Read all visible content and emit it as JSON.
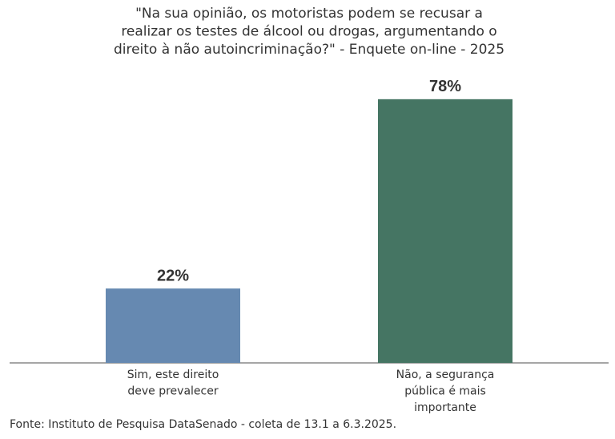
{
  "chart_data": {
    "type": "bar",
    "title": [
      "\"Na sua opinião, os motoristas podem se recusar a",
      "realizar os testes de álcool ou drogas, argumentando o",
      "direito à não autoincriminação?\" - Enquete on-line - 2025"
    ],
    "categories": [
      [
        "Sim, este direito",
        "deve prevalecer"
      ],
      [
        "Não, a segurança",
        "pública é mais",
        "importante"
      ]
    ],
    "values": [
      22,
      78
    ],
    "value_labels": [
      "22%",
      "78%"
    ],
    "colors": [
      "#6689b1",
      "#457563"
    ],
    "source": "Fonte: Instituto de Pesquisa DataSenado - coleta de 13.1 a 6.3.2025."
  }
}
